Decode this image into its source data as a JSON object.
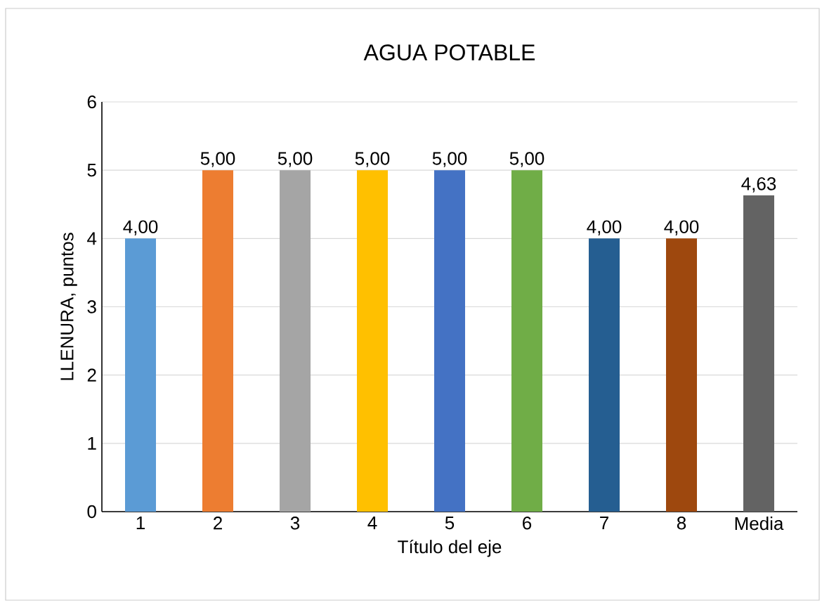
{
  "chart_data": {
    "type": "bar",
    "title": "AGUA POTABLE",
    "xlabel": "Título del eje",
    "ylabel": "LLENURA, puntos",
    "categories": [
      "1",
      "2",
      "3",
      "4",
      "5",
      "6",
      "7",
      "8",
      "Media"
    ],
    "values": [
      4,
      5,
      5,
      5,
      5,
      5,
      4,
      4,
      4.63
    ],
    "value_labels": [
      "4,00",
      "5,00",
      "5,00",
      "5,00",
      "5,00",
      "5,00",
      "4,00",
      "4,00",
      "4,63"
    ],
    "colors": [
      "#5b9bd5",
      "#ed7d31",
      "#a5a5a5",
      "#ffc000",
      "#4472c4",
      "#70ad47",
      "#255e91",
      "#9e480e",
      "#636363"
    ],
    "ylim": [
      0,
      6
    ],
    "yticks": [
      0,
      1,
      2,
      3,
      4,
      5,
      6
    ],
    "grid": "y"
  }
}
